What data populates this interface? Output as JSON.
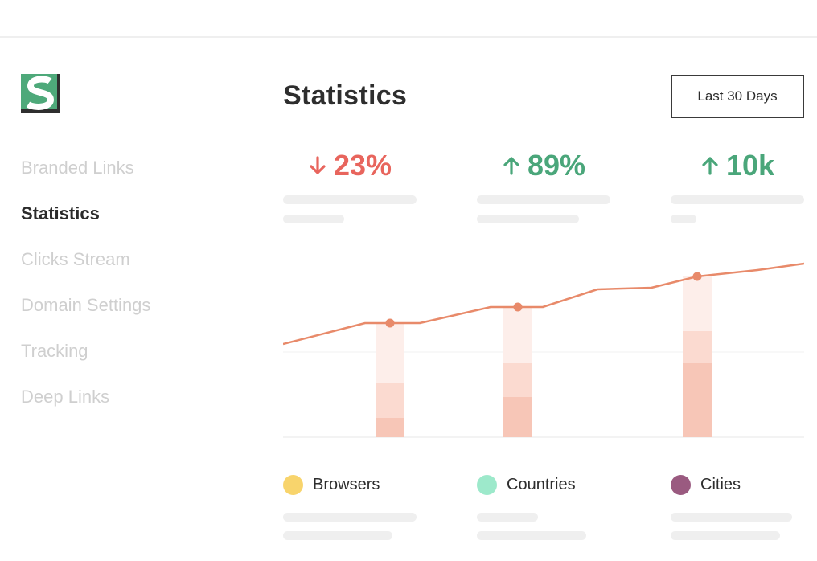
{
  "window": {
    "controls": {
      "close_color": "#ee6b6b",
      "minimize_color": "#fbdd48",
      "maximize_color": "#52b17c"
    }
  },
  "logo": {
    "letter": "S",
    "colors": {
      "green": "#4ea97a",
      "dark": "#2f2f2f"
    }
  },
  "sidebar": {
    "items": [
      {
        "label": "Branded Links",
        "active": false
      },
      {
        "label": "Statistics",
        "active": true
      },
      {
        "label": "Clicks Stream",
        "active": false
      },
      {
        "label": "Domain Settings",
        "active": false
      },
      {
        "label": "Tracking",
        "active": false
      },
      {
        "label": "Deep Links",
        "active": false
      }
    ]
  },
  "header": {
    "title": "Statistics",
    "range_button": "Last 30 Days"
  },
  "stats": [
    {
      "value": "23%",
      "direction": "down",
      "color": "#e8655d"
    },
    {
      "value": "89%",
      "direction": "up",
      "color": "#4aa67a"
    },
    {
      "value": "10k",
      "direction": "up",
      "color": "#4aa67a"
    }
  ],
  "chart_data": {
    "type": "line",
    "line_color": "#e88a6a",
    "bar_colors": [
      "#fdeeea",
      "#fbdad0",
      "#f7c6b7"
    ],
    "line": [
      0.58,
      0.71,
      0.71,
      0.71,
      0.81,
      0.81,
      0.81,
      0.92,
      0.93,
      1.0,
      1.04,
      1.08
    ],
    "markers": [
      2,
      5,
      9
    ],
    "bars": [
      {
        "levels": [
          0.71,
          0.34,
          0.12
        ]
      },
      {
        "levels": [
          0.81,
          0.46,
          0.25
        ]
      },
      {
        "levels": [
          1.0,
          0.66,
          0.46
        ]
      }
    ]
  },
  "legend": [
    {
      "label": "Browsers",
      "color": "#f8d46c"
    },
    {
      "label": "Countries",
      "color": "#9de9cb"
    },
    {
      "label": "Cities",
      "color": "#9a5a80"
    }
  ]
}
